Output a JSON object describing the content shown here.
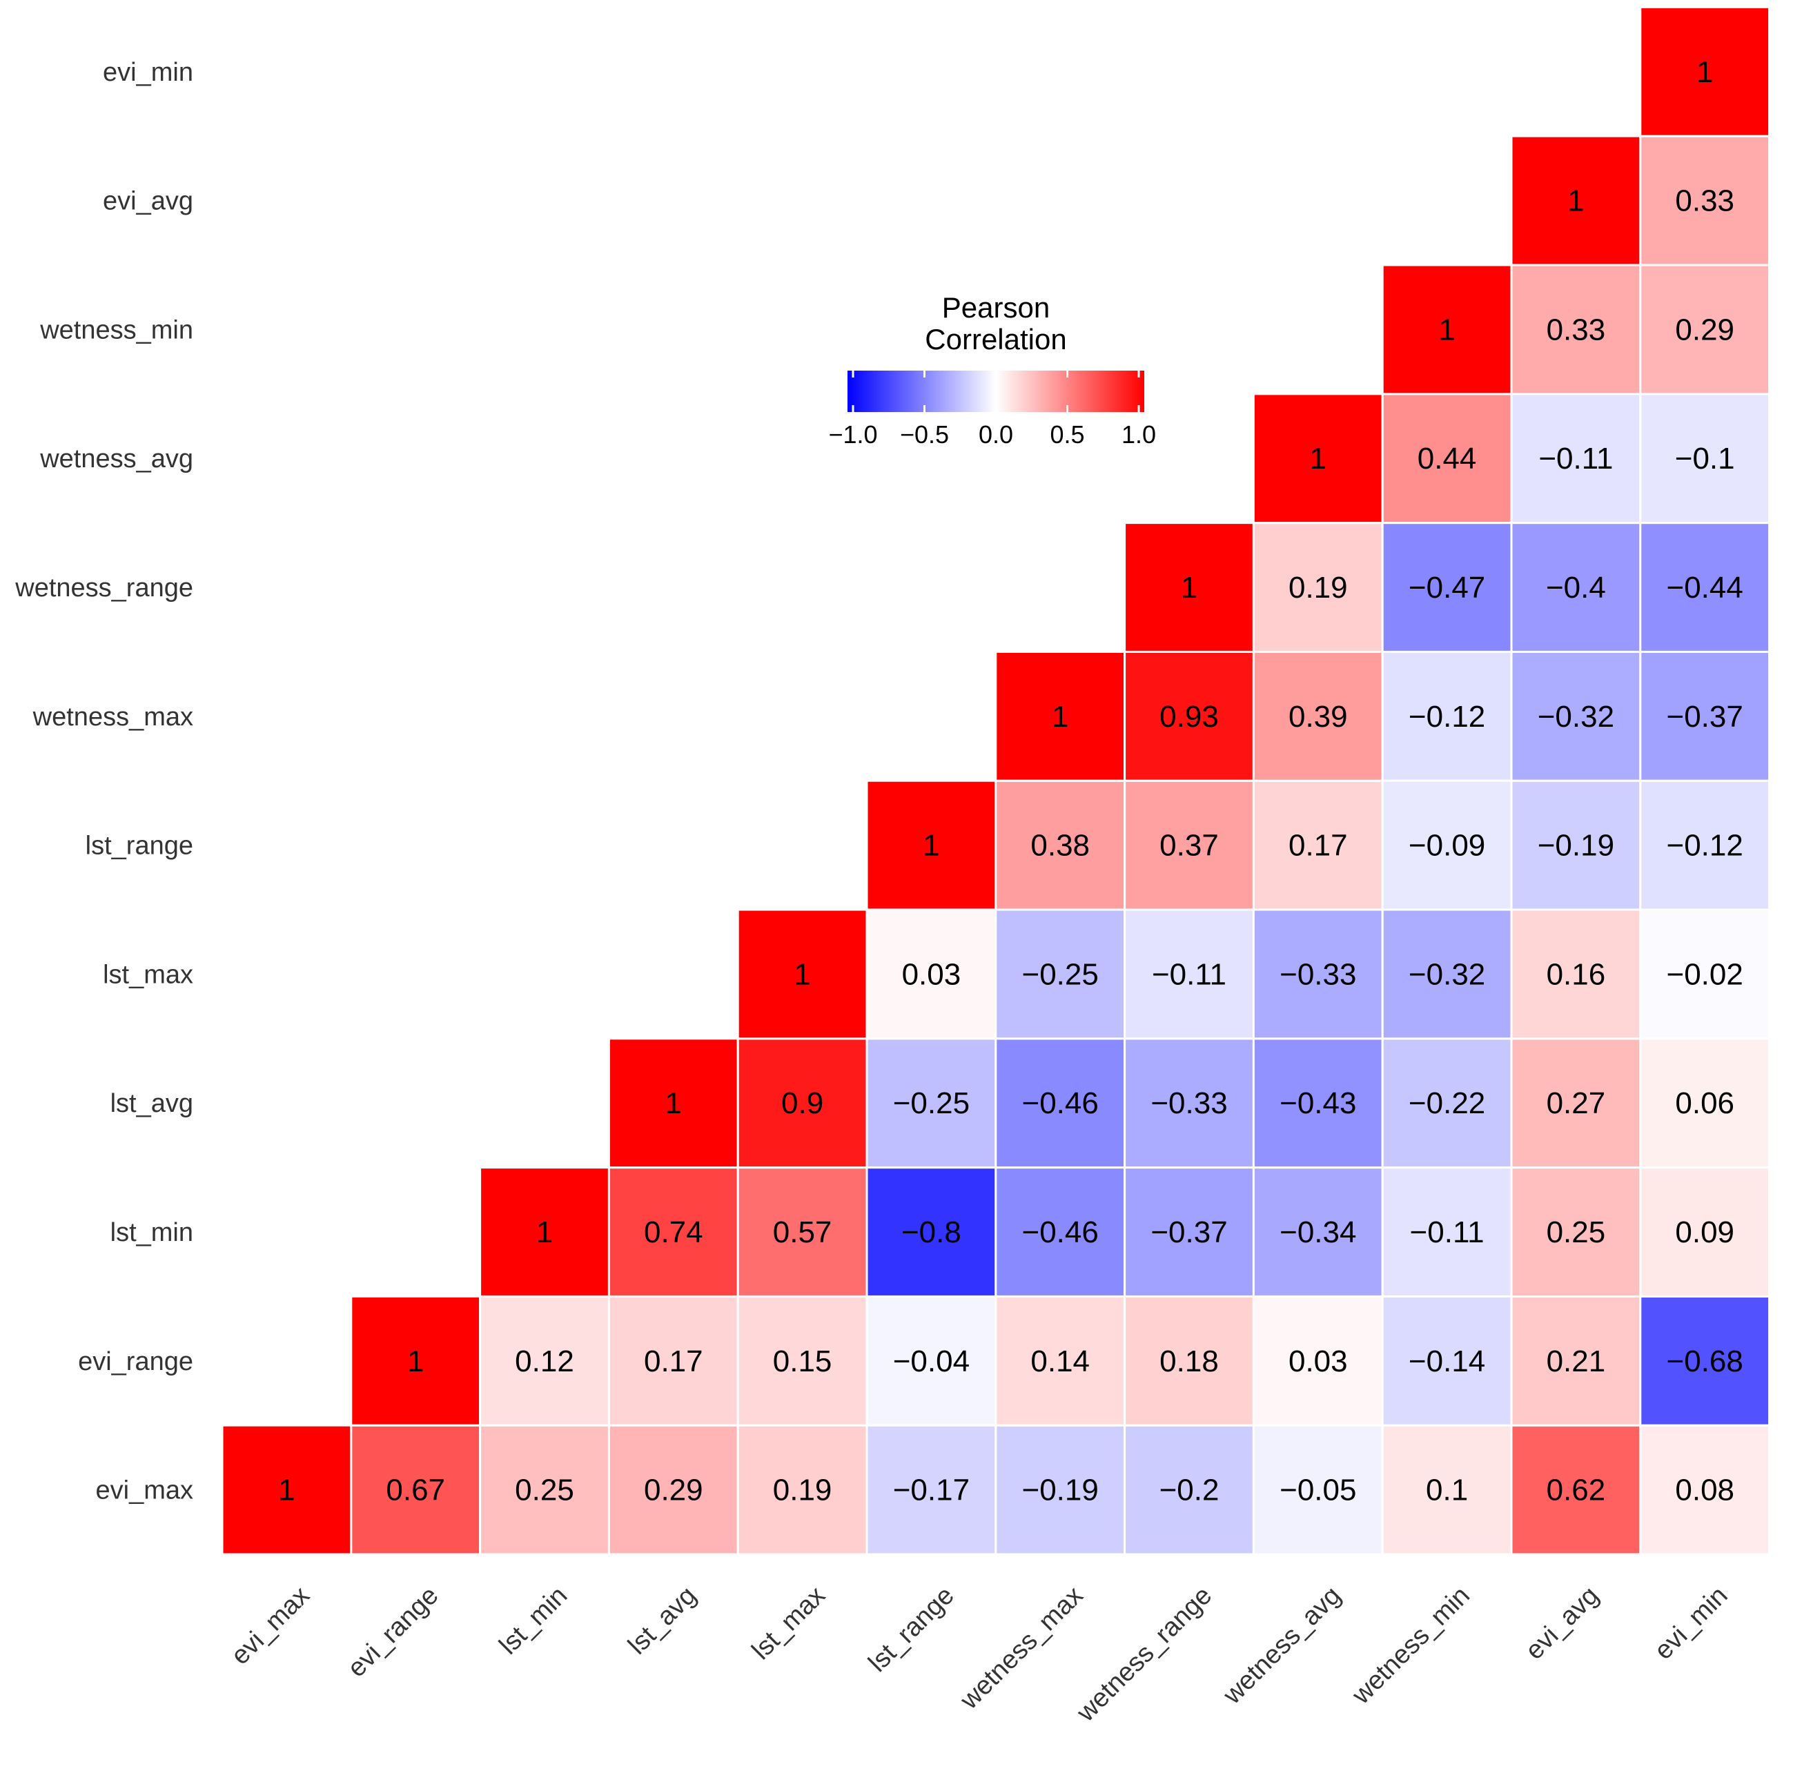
{
  "chart_data": {
    "type": "heatmap",
    "variables": [
      "evi_max",
      "evi_range",
      "lst_min",
      "lst_avg",
      "lst_max",
      "lst_range",
      "wetness_max",
      "wetness_range",
      "wetness_avg",
      "wetness_min",
      "evi_avg",
      "evi_min"
    ],
    "matrix": [
      [
        1,
        0.67,
        0.25,
        0.29,
        0.19,
        -0.17,
        -0.19,
        -0.2,
        -0.05,
        0.1,
        0.62,
        0.08
      ],
      [
        0.67,
        1,
        0.12,
        0.17,
        0.15,
        -0.04,
        0.14,
        0.18,
        0.03,
        -0.14,
        0.21,
        -0.68
      ],
      [
        0.25,
        0.12,
        1,
        0.74,
        0.57,
        -0.8,
        -0.46,
        -0.37,
        -0.34,
        -0.11,
        0.25,
        0.09
      ],
      [
        0.29,
        0.17,
        0.74,
        1,
        0.9,
        -0.25,
        -0.46,
        -0.33,
        -0.43,
        -0.22,
        0.27,
        0.06
      ],
      [
        0.19,
        0.15,
        0.57,
        0.9,
        1,
        0.03,
        -0.25,
        -0.11,
        -0.33,
        -0.32,
        0.16,
        -0.02
      ],
      [
        -0.17,
        -0.04,
        -0.8,
        -0.25,
        0.03,
        1,
        0.38,
        0.37,
        0.17,
        -0.09,
        -0.19,
        -0.12
      ],
      [
        -0.19,
        0.14,
        -0.46,
        -0.46,
        -0.25,
        0.38,
        1,
        0.93,
        0.39,
        -0.12,
        -0.32,
        -0.37
      ],
      [
        -0.2,
        0.18,
        -0.37,
        -0.33,
        -0.11,
        0.37,
        0.93,
        1,
        0.19,
        -0.47,
        -0.4,
        -0.44
      ],
      [
        -0.05,
        0.03,
        -0.34,
        -0.43,
        -0.33,
        0.17,
        0.39,
        0.19,
        1,
        0.44,
        -0.11,
        -0.1
      ],
      [
        0.1,
        -0.14,
        -0.11,
        -0.22,
        -0.32,
        -0.09,
        -0.12,
        -0.47,
        0.44,
        1,
        0.33,
        0.29
      ],
      [
        0.62,
        0.21,
        0.25,
        0.27,
        0.16,
        -0.19,
        -0.32,
        -0.4,
        -0.11,
        0.33,
        1,
        0.33
      ],
      [
        0.08,
        -0.68,
        0.09,
        0.06,
        -0.02,
        -0.12,
        -0.37,
        -0.44,
        -0.1,
        0.29,
        0.33,
        1
      ]
    ],
    "show": "upper-triangle",
    "legend": {
      "title_line1": "Pearson",
      "title_line2": "Correlation",
      "ticks": [
        "−1.0",
        "−0.5",
        "0.0",
        "0.5",
        "1.0"
      ],
      "tick_values": [
        -1,
        -0.5,
        0,
        0.5,
        1
      ],
      "range": [
        -1,
        1
      ],
      "placement": "top-center"
    },
    "colors": {
      "low": "#0000ff",
      "mid": "#ffffff",
      "high": "#ff0000",
      "cell_border": "#ffffff",
      "text": "#000000"
    }
  }
}
